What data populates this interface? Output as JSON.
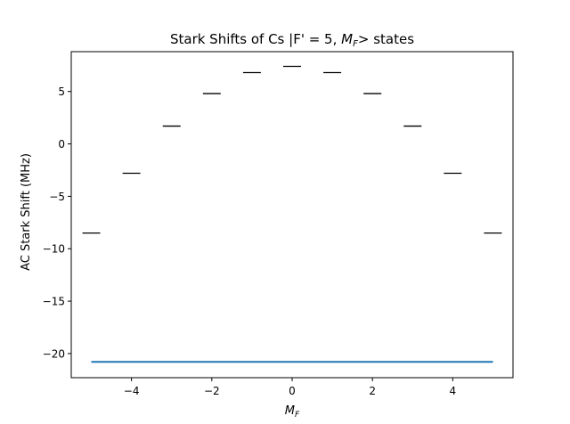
{
  "chart_data": {
    "type": "scatter",
    "title": "Stark Shifts of Cs |F' = 5, ",
    "title_math": "M",
    "title_math_sub": "F",
    "title_suffix": "> states",
    "xlabel_main": "M",
    "xlabel_sub": "F",
    "ylabel": "AC Stark Shift (MHz)",
    "xlim": [
      -5.5,
      5.5
    ],
    "ylim": [
      -22.3,
      8.8
    ],
    "xticks": [
      -4,
      -2,
      0,
      2,
      4
    ],
    "xtick_labels": [
      "−4",
      "−2",
      "0",
      "2",
      "4"
    ],
    "yticks": [
      5,
      0,
      -5,
      -10,
      -15,
      -20
    ],
    "ytick_labels": [
      "5",
      "0",
      "−5",
      "−10",
      "−15",
      "−20"
    ],
    "grid": false,
    "series": [
      {
        "marker": "hline",
        "color": "#000000",
        "x": [
          -5,
          -4,
          -3,
          -2,
          -1,
          0,
          1,
          2,
          3,
          4,
          5
        ],
        "y": [
          -8.5,
          -2.8,
          1.7,
          4.8,
          6.8,
          7.4,
          6.8,
          4.8,
          1.7,
          -2.8,
          -8.5
        ]
      },
      {
        "marker": "line",
        "color": "#1f77b4",
        "x": [
          -5,
          5
        ],
        "y": [
          -20.8,
          -20.8
        ]
      }
    ]
  }
}
